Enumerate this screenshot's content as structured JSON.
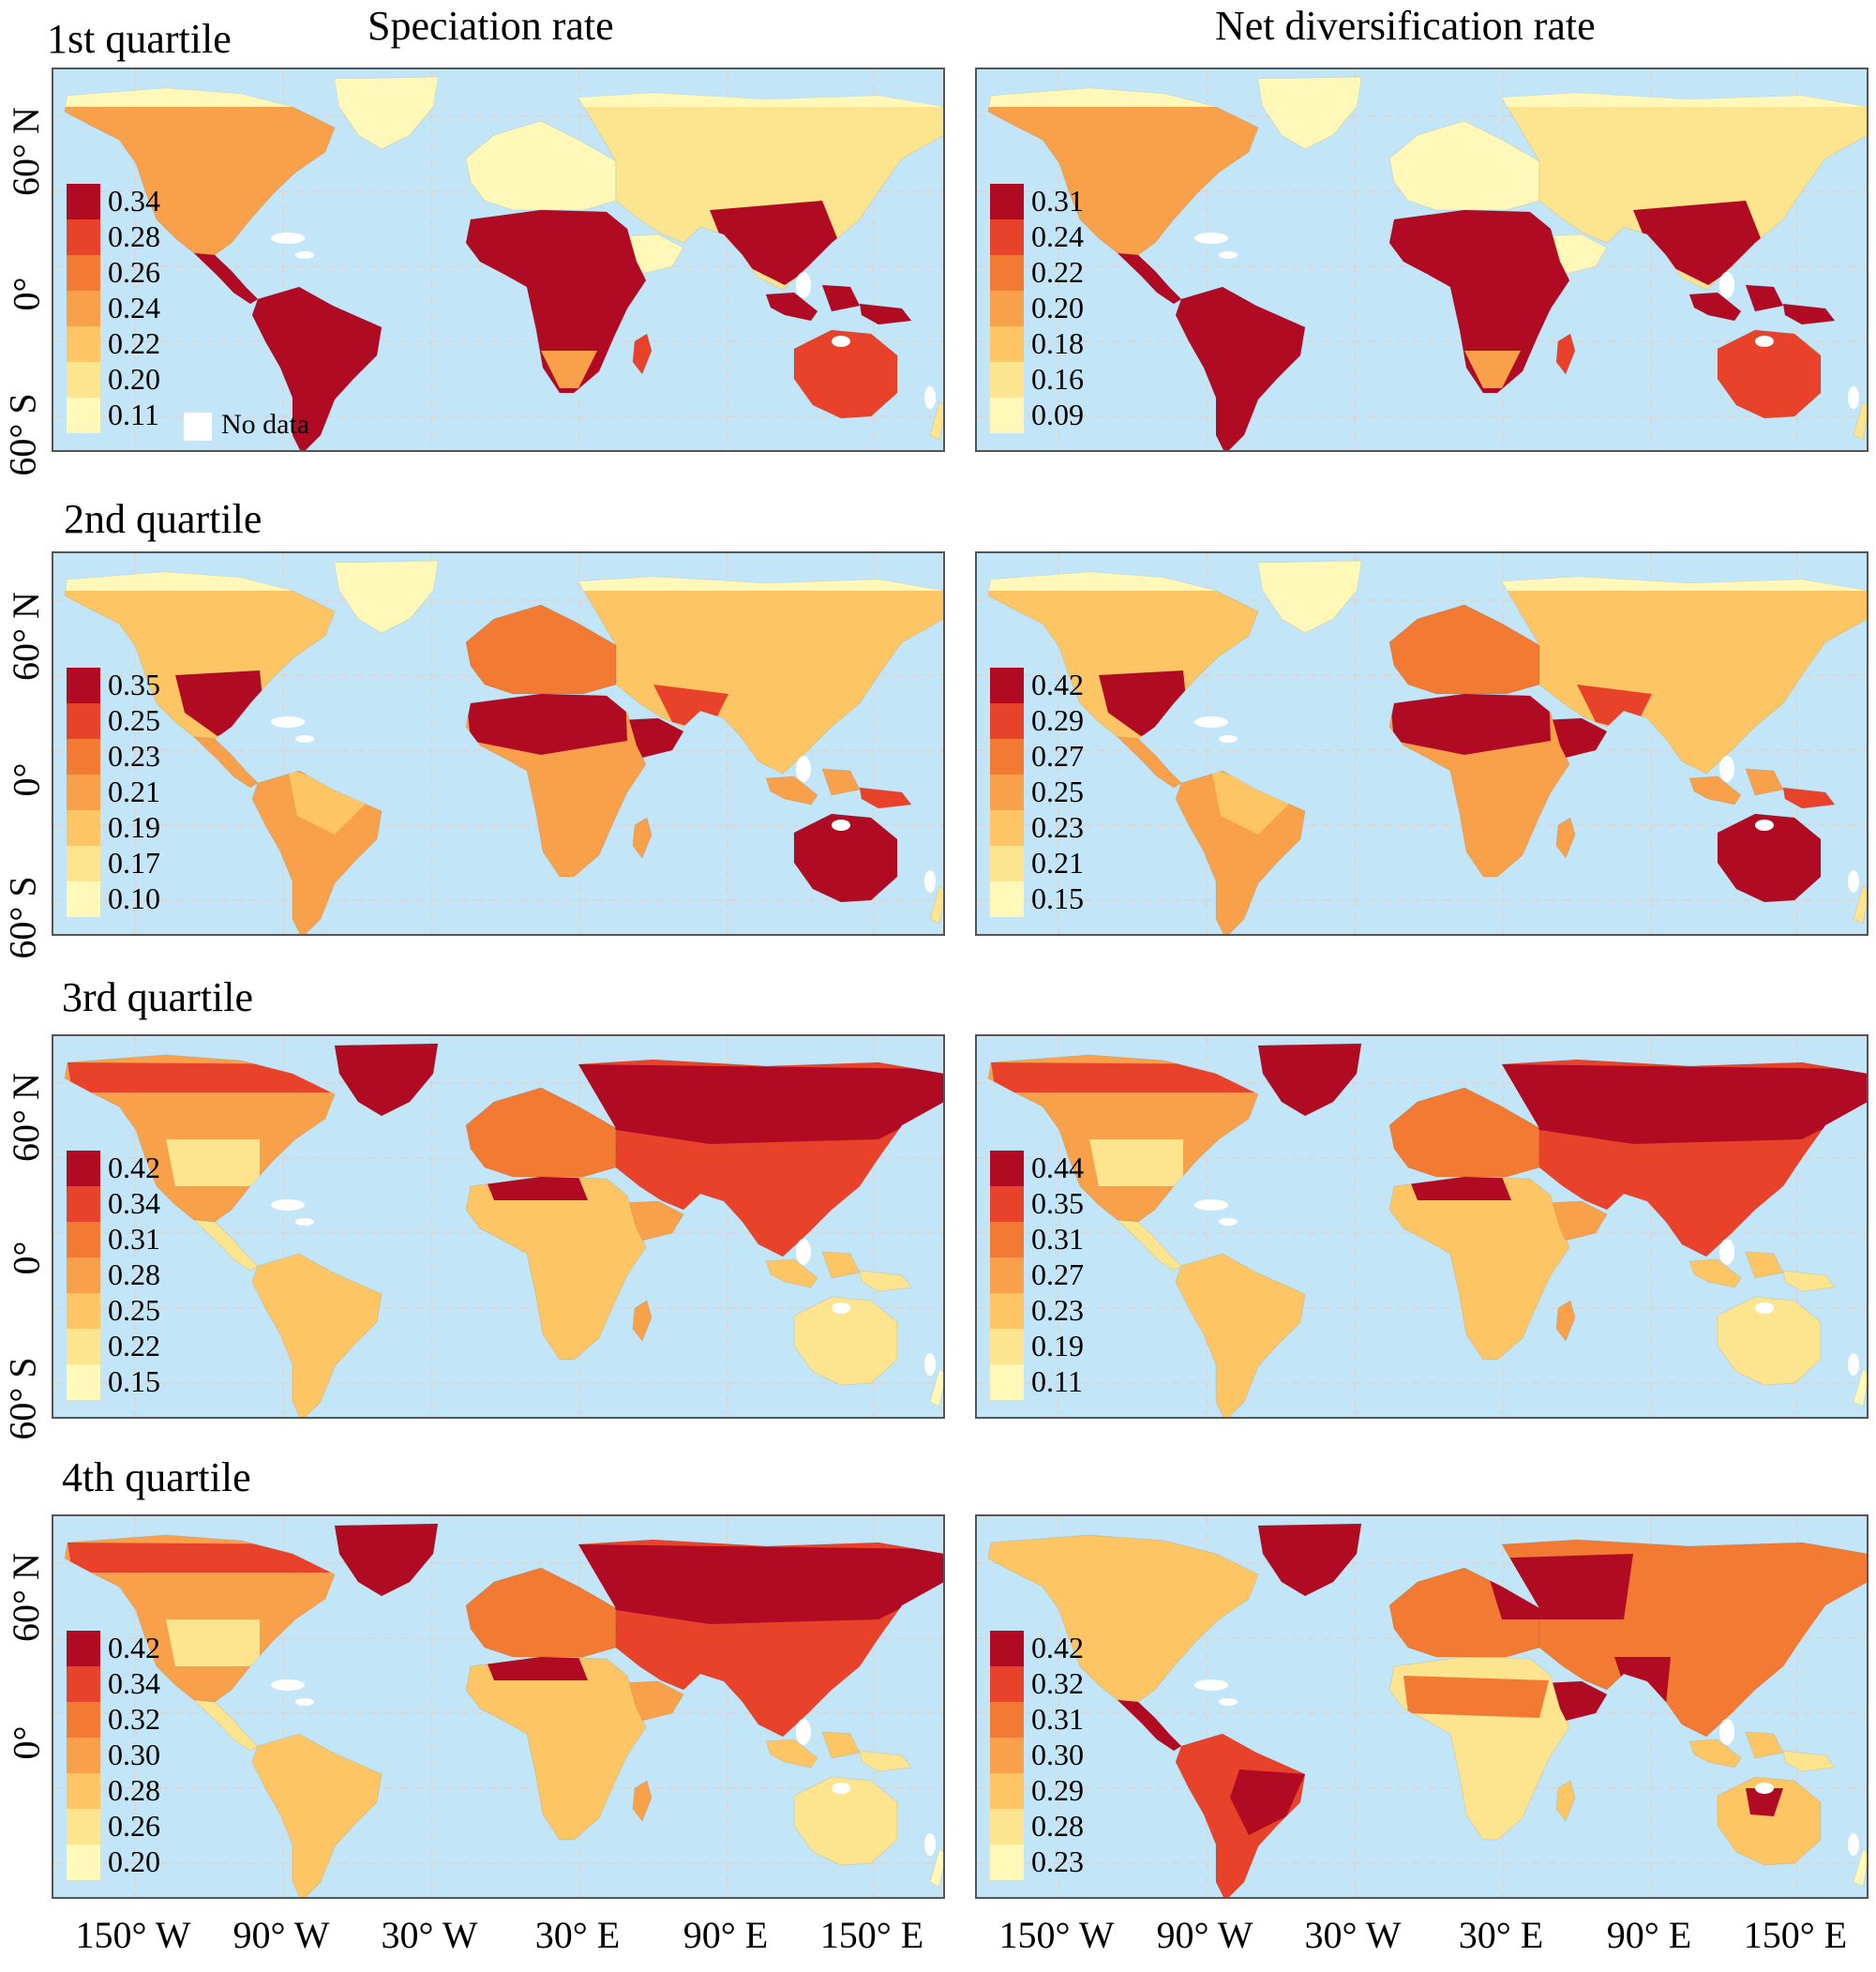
{
  "column_titles": [
    "Speciation rate",
    "Net diversification rate"
  ],
  "row_titles": [
    "1st quartile",
    "2nd quartile",
    "3rd quartile",
    "4th quartile"
  ],
  "lat_labels": {
    "full": [
      "60° N",
      "0°",
      "60° S"
    ],
    "short": [
      "60° N",
      "0°"
    ]
  },
  "lon_labels": [
    "150° W",
    "90° W",
    "30° W",
    "30° E",
    "90° E",
    "150° E"
  ],
  "no_data_label": "No data",
  "colors": {
    "ocean": "#c2e6f8",
    "no_data": "#ffffff",
    "scale": [
      "#fff8b8",
      "#fde48f",
      "#fdc563",
      "#f9a04a",
      "#f27a33",
      "#e8432a",
      "#b10b24"
    ]
  },
  "panels": [
    {
      "row": 0,
      "col": 0,
      "legend": [
        "0.34",
        "0.28",
        "0.26",
        "0.24",
        "0.22",
        "0.20",
        "0.11"
      ],
      "pattern": "tropical"
    },
    {
      "row": 0,
      "col": 1,
      "legend": [
        "0.31",
        "0.24",
        "0.22",
        "0.20",
        "0.18",
        "0.16",
        "0.09"
      ],
      "pattern": "tropical"
    },
    {
      "row": 1,
      "col": 0,
      "legend": [
        "0.35",
        "0.25",
        "0.23",
        "0.21",
        "0.19",
        "0.17",
        "0.10"
      ],
      "pattern": "arid"
    },
    {
      "row": 1,
      "col": 1,
      "legend": [
        "0.42",
        "0.29",
        "0.27",
        "0.25",
        "0.23",
        "0.21",
        "0.15"
      ],
      "pattern": "arid"
    },
    {
      "row": 2,
      "col": 0,
      "legend": [
        "0.42",
        "0.34",
        "0.31",
        "0.28",
        "0.25",
        "0.22",
        "0.15"
      ],
      "pattern": "boreal"
    },
    {
      "row": 2,
      "col": 1,
      "legend": [
        "0.44",
        "0.35",
        "0.31",
        "0.27",
        "0.23",
        "0.19",
        "0.11"
      ],
      "pattern": "boreal"
    },
    {
      "row": 3,
      "col": 0,
      "legend": [
        "0.42",
        "0.34",
        "0.32",
        "0.30",
        "0.28",
        "0.26",
        "0.20"
      ],
      "pattern": "boreal"
    },
    {
      "row": 3,
      "col": 1,
      "legend": [
        "0.42",
        "0.32",
        "0.31",
        "0.30",
        "0.29",
        "0.28",
        "0.23"
      ],
      "pattern": "mixed"
    }
  ]
}
